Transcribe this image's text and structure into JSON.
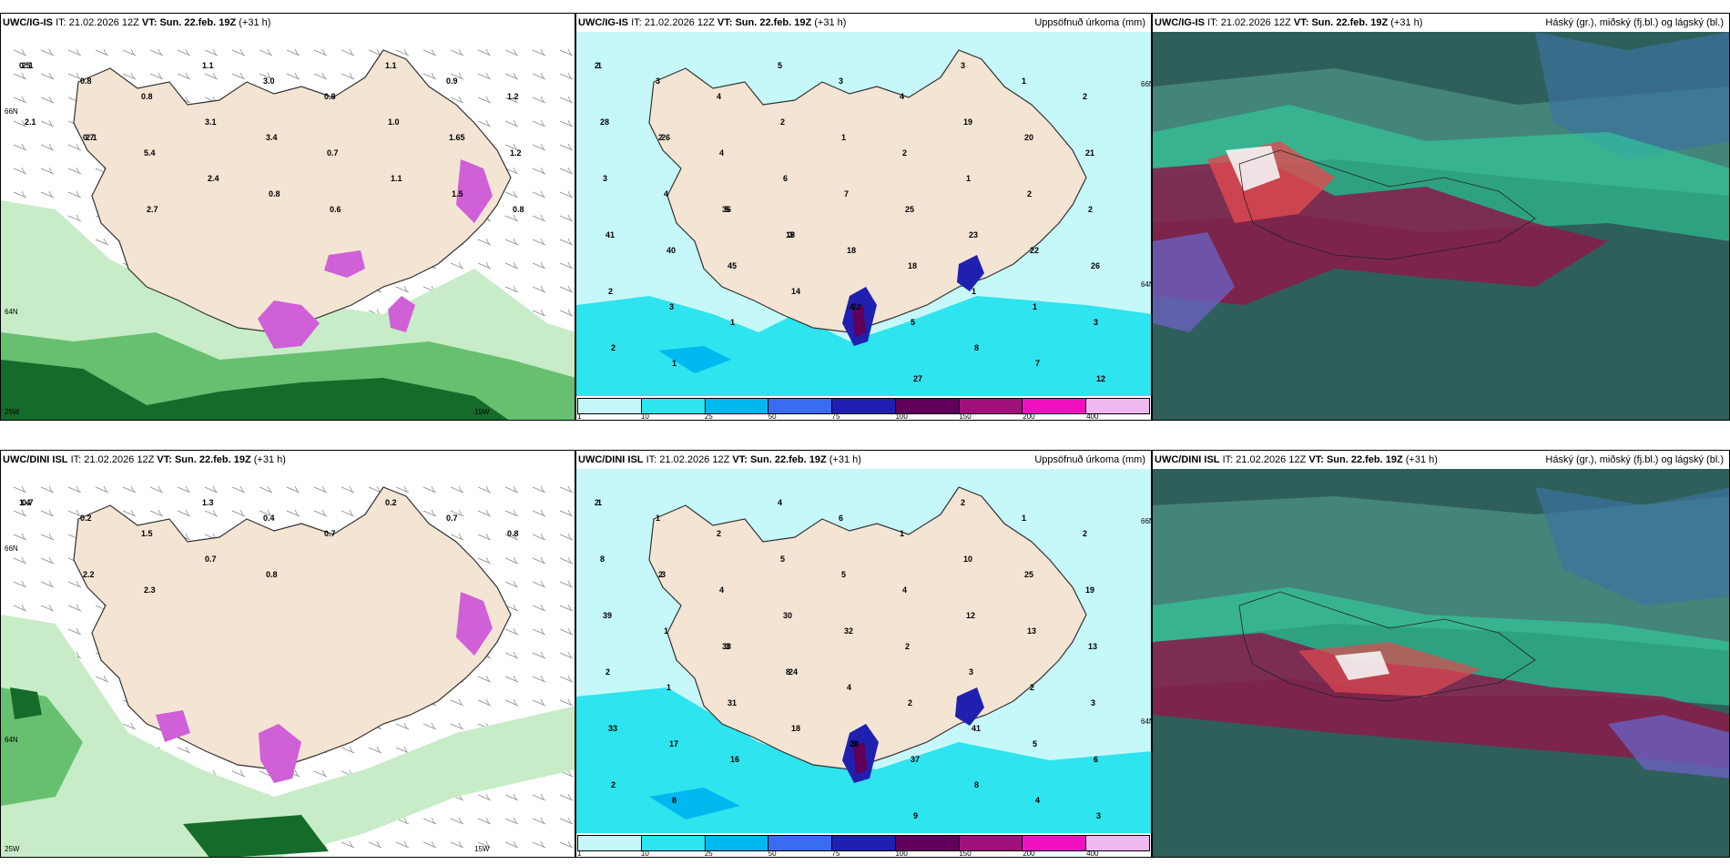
{
  "rows": [
    {
      "model": "UWC/IG-IS",
      "panels": [
        {
          "it_label": "IT:",
          "it_value": "21.02.2026 12Z",
          "vt_label": "VT:",
          "vt_value": "Sun. 22.feb. 19Z",
          "lead": "(+31 h)",
          "axis_labels": [
            "66N",
            "64N",
            "25W",
            "15W"
          ],
          "labels": [
            "0.5",
            "0.8",
            "0.8",
            "1.1",
            "3.0",
            "0.8",
            "1.1",
            "0.9",
            "1.2",
            "2.1",
            "0.7",
            "5.4",
            "3.1",
            "3.4",
            "0.7",
            "1.0",
            "1.65",
            "1.2",
            "2.1",
            "2.1",
            "2.7",
            "2.4",
            "0.8",
            "0.6",
            "1.1",
            "1.5",
            "0.8"
          ]
        },
        {
          "it_label": "IT:",
          "it_value": "21.02.2026 12Z",
          "vt_label": "VT:",
          "vt_value": "Sun. 22.feb. 19Z",
          "lead": "(+31 h)",
          "title_right": "Uppsöfnuð úrkoma (mm)",
          "axis_labels": [
            "66N",
            "64N"
          ],
          "labels": [
            "2",
            "3",
            "4",
            "5",
            "3",
            "4",
            "3",
            "1",
            "2",
            "1",
            "2",
            "4",
            "2",
            "1",
            "2",
            "19",
            "20",
            "21",
            "28",
            "26",
            "36",
            "6",
            "7",
            "25",
            "1",
            "2",
            "2",
            "3",
            "4",
            "5",
            "18",
            "18",
            "18",
            "23",
            "22",
            "26",
            "41",
            "40",
            "45",
            "3",
            "4",
            "5",
            "1",
            "1",
            "3",
            "2",
            "3",
            "1",
            "14",
            "22",
            "27",
            "8",
            "7",
            "12",
            "2",
            "1"
          ],
          "legend": {
            "colors": [
              "#c6f8fa",
              "#2ee4ee",
              "#00b8f0",
              "#3a6cf0",
              "#2020b0",
              "#60005a",
              "#a0107a",
              "#f010c0",
              "#f0b8f0"
            ],
            "ticks": [
              "1",
              "10",
              "25",
              "50",
              "75",
              "100",
              "150",
              "200",
              "400"
            ]
          }
        },
        {
          "it_label": "IT:",
          "it_value": "21.02.2026 12Z",
          "vt_label": "VT:",
          "vt_value": "Sun. 22.feb. 19Z",
          "lead": "(+31 h)",
          "title_right": "Háský (gr.), miðský (fj.bl.) og lágský (bl.)"
        }
      ]
    },
    {
      "model": "UWC/DINI ISL",
      "panels": [
        {
          "it_label": "IT:",
          "it_value": "21.02.2026 12Z",
          "vt_label": "VT:",
          "vt_value": "Sun. 22.feb. 19Z",
          "lead": "(+31 h)",
          "axis_labels": [
            "66N",
            "64N",
            "25W",
            "15W"
          ],
          "labels": [
            "1.4",
            "0.2",
            "1.5",
            "1.3",
            "0.4",
            "0.7",
            "0.2",
            "0.7",
            "0.8",
            "0.7",
            "2.2",
            "2.3",
            "0.7",
            "0.8"
          ],
          "legend": null
        },
        {
          "it_label": "IT:",
          "it_value": "21.02.2026 12Z",
          "vt_label": "VT:",
          "vt_value": "Sun. 22.feb. 19Z",
          "lead": "(+31 h)",
          "title_right": "Uppsöfnuð úrkoma (mm)",
          "axis_labels": [
            "66N",
            "64N"
          ],
          "labels": [
            "2",
            "1",
            "2",
            "4",
            "6",
            "1",
            "2",
            "1",
            "2",
            "1",
            "2",
            "4",
            "5",
            "5",
            "4",
            "10",
            "25",
            "19",
            "8",
            "3",
            "33",
            "30",
            "32",
            "2",
            "12",
            "13",
            "13",
            "39",
            "1",
            "3",
            "8",
            "4",
            "2",
            "3",
            "2",
            "3",
            "2",
            "1",
            "31",
            "24",
            "20",
            "37",
            "41",
            "5",
            "6",
            "33",
            "17",
            "16",
            "18",
            "9",
            "9",
            "8",
            "4",
            "3",
            "2",
            "8"
          ],
          "legend": {
            "colors": [
              "#c6f8fa",
              "#2ee4ee",
              "#00b8f0",
              "#3a6cf0",
              "#2020b0",
              "#60005a",
              "#a0107a",
              "#f010c0",
              "#f0b8f0"
            ],
            "ticks": [
              "1",
              "10",
              "25",
              "50",
              "75",
              "100",
              "150",
              "200",
              "400"
            ]
          }
        },
        {
          "it_label": "IT:",
          "it_value": "21.02.2026 12Z",
          "vt_label": "VT:",
          "vt_value": "Sun. 22.feb. 19Z",
          "lead": "(+31 h)",
          "title_right": "Háský (gr.), miðský (fj.bl.) og lágský (bl.)"
        }
      ]
    }
  ]
}
